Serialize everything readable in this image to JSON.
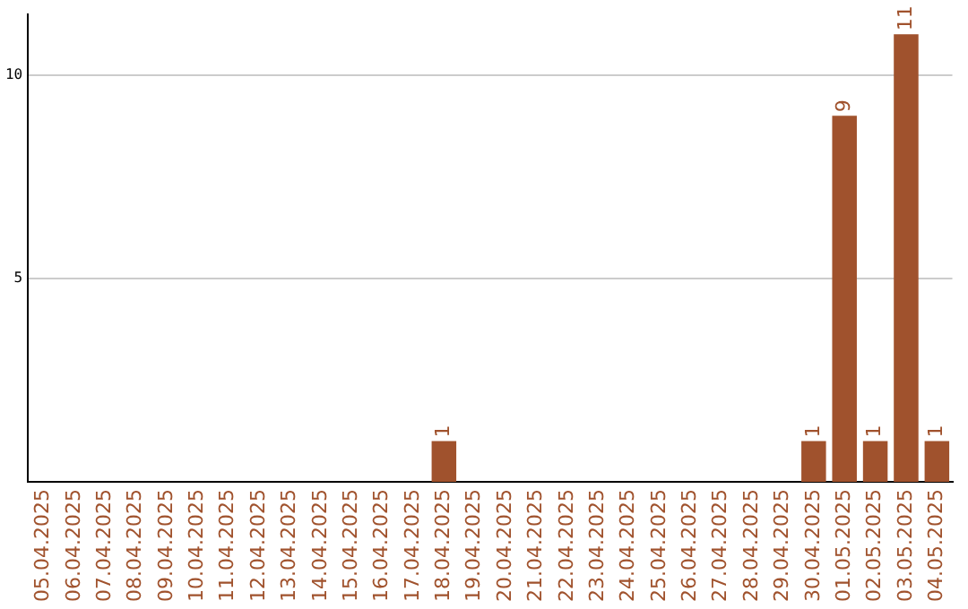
{
  "chart_data": {
    "type": "bar",
    "categories": [
      "05.04.2025",
      "06.04.2025",
      "07.04.2025",
      "08.04.2025",
      "09.04.2025",
      "10.04.2025",
      "11.04.2025",
      "12.04.2025",
      "13.04.2025",
      "14.04.2025",
      "15.04.2025",
      "16.04.2025",
      "17.04.2025",
      "18.04.2025",
      "19.04.2025",
      "20.04.2025",
      "21.04.2025",
      "22.04.2025",
      "23.04.2025",
      "24.04.2025",
      "25.04.2025",
      "26.04.2025",
      "27.04.2025",
      "28.04.2025",
      "29.04.2025",
      "30.04.2025",
      "01.05.2025",
      "02.05.2025",
      "03.05.2025",
      "04.05.2025"
    ],
    "values": [
      0,
      0,
      0,
      0,
      0,
      0,
      0,
      0,
      0,
      0,
      0,
      0,
      0,
      1,
      0,
      0,
      0,
      0,
      0,
      0,
      0,
      0,
      0,
      0,
      0,
      1,
      9,
      1,
      11,
      1
    ],
    "value_labels": [
      null,
      null,
      null,
      null,
      null,
      null,
      null,
      null,
      null,
      null,
      null,
      null,
      null,
      "1",
      null,
      null,
      null,
      null,
      null,
      null,
      null,
      null,
      null,
      null,
      null,
      "1",
      "9",
      "1",
      "11",
      "1"
    ],
    "color": "#a0522d",
    "ylim": [
      0,
      11.5
    ],
    "yticks": [
      5,
      10
    ],
    "grid": "y"
  }
}
